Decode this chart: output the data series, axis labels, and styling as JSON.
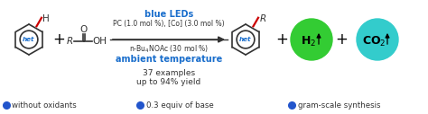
{
  "bg_color": "#ffffff",
  "blue_bold": "#1a6ecc",
  "black": "#000000",
  "red": "#cc0000",
  "green_circle_color": "#33cc33",
  "cyan_circle_color": "#33cccc",
  "dot_color": "#2255cc",
  "line1_blue": "blue LEDs",
  "line2_black": "PC (1.0 mol %), [Co] (3.0 mol %)",
  "line3_black": "n-Bu₄NOAc (30 mol %)",
  "line4_blue": "ambient temperature",
  "center_text1": "37 examples",
  "center_text2": "up to 94% yield",
  "bullet1": "without oxidants",
  "bullet2": "0.3 equiv of base",
  "bullet3": "gram-scale synthesis",
  "figwidth": 4.74,
  "figheight": 1.27,
  "dpi": 100
}
